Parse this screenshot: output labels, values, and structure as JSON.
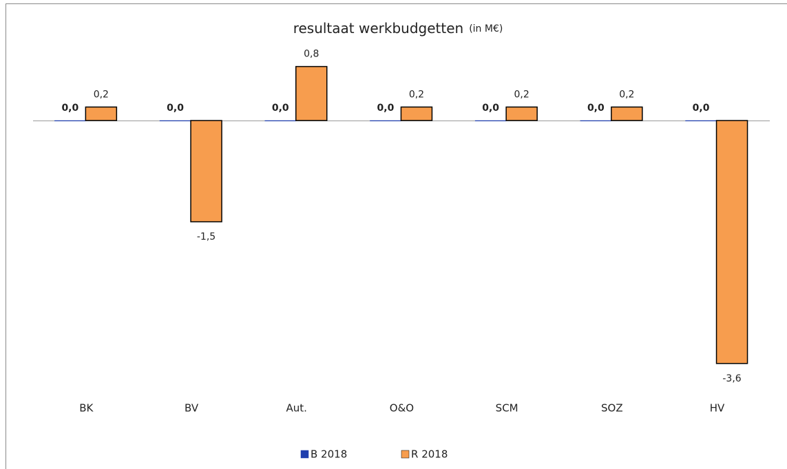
{
  "chart_data": {
    "type": "bar",
    "title": "resultaat werkbudgetten",
    "subtitle": "(in M€)",
    "categories": [
      "BK",
      "BV",
      "Aut.",
      "O&O",
      "SCM",
      "SOZ",
      "HV"
    ],
    "series": [
      {
        "name": "B 2018",
        "color": "#1f3fae",
        "values": [
          0,
          0,
          0,
          0,
          0,
          0,
          0
        ],
        "value_labels": [
          "0,0",
          "0,0",
          "0,0",
          "0,0",
          "0,0",
          "0,0",
          "0,0"
        ]
      },
      {
        "name": "R 2018",
        "color": "#f79d4e",
        "values": [
          0.2,
          -1.5,
          0.8,
          0.2,
          0.2,
          0.2,
          -3.6
        ],
        "value_labels": [
          "0,2",
          "-1,5",
          "0,8",
          "0,2",
          "0,2",
          "0,2",
          "-3,6"
        ]
      }
    ],
    "legend": "bottom"
  }
}
